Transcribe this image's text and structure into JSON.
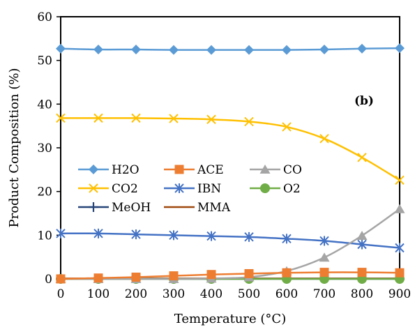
{
  "chart_data": {
    "type": "line",
    "xlabel": "Temperature (°C)",
    "ylabel": "Product Composition (%)",
    "annotation": "(b)",
    "xlim": [
      0,
      900
    ],
    "ylim": [
      0,
      60
    ],
    "x_ticks": [
      0,
      100,
      200,
      300,
      400,
      500,
      600,
      700,
      800,
      900
    ],
    "y_ticks": [
      0,
      10,
      20,
      30,
      40,
      50,
      60
    ],
    "grid": false,
    "legend_position": "left-middle",
    "x": [
      0,
      100,
      200,
      300,
      400,
      500,
      600,
      700,
      800,
      900
    ],
    "series": [
      {
        "name": "H2O",
        "color": "#5B9BD5",
        "marker": "diamond",
        "values": [
          52.7,
          52.5,
          52.5,
          52.4,
          52.4,
          52.4,
          52.4,
          52.5,
          52.7,
          52.8
        ]
      },
      {
        "name": "ACE",
        "color": "#ED7D31",
        "marker": "square",
        "values": [
          0.0,
          0.2,
          0.4,
          0.7,
          1.0,
          1.2,
          1.4,
          1.5,
          1.5,
          1.4
        ]
      },
      {
        "name": "CO",
        "color": "#A5A5A5",
        "marker": "triangle",
        "values": [
          0.0,
          0.0,
          0.0,
          0.0,
          0.1,
          0.4,
          1.8,
          4.9,
          9.9,
          16.0
        ]
      },
      {
        "name": "CO2",
        "color": "#FFC000",
        "marker": "x",
        "values": [
          36.8,
          36.8,
          36.8,
          36.7,
          36.5,
          36.0,
          34.8,
          32.1,
          27.8,
          22.6
        ]
      },
      {
        "name": "IBN",
        "color": "#4472C4",
        "marker": "star",
        "values": [
          10.4,
          10.4,
          10.2,
          10.0,
          9.8,
          9.6,
          9.2,
          8.7,
          7.9,
          7.1
        ]
      },
      {
        "name": "O2",
        "color": "#70AD47",
        "marker": "circle",
        "values": [
          0,
          0,
          0,
          0,
          0,
          0,
          0,
          0,
          0,
          0
        ]
      },
      {
        "name": "MeOH",
        "color": "#264478",
        "marker": "plus",
        "values": [
          0,
          0,
          0,
          0,
          0,
          0,
          0,
          0,
          0,
          0
        ]
      },
      {
        "name": "MMA",
        "color": "#9E480E",
        "marker": "none",
        "values": [
          0.1,
          0.1,
          0.1,
          0.1,
          0.1,
          0.1,
          0.1,
          0.1,
          0.1,
          0.1
        ]
      }
    ]
  }
}
